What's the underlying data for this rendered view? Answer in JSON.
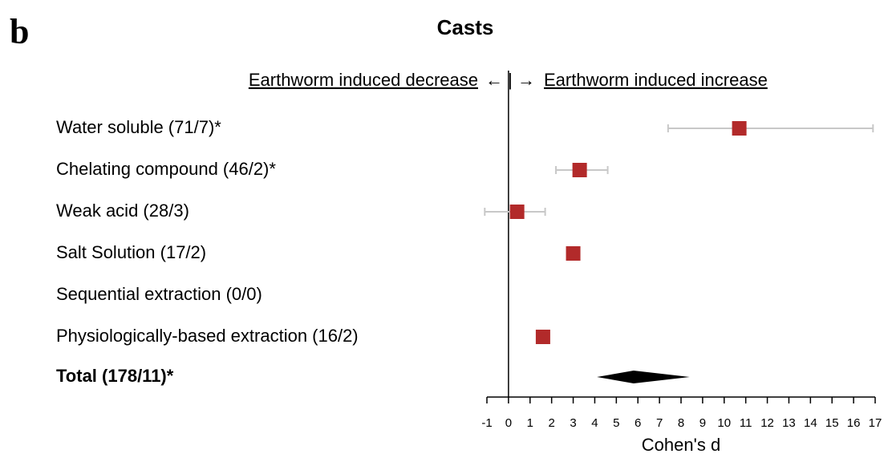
{
  "chart_data": {
    "type": "forest",
    "panel_label": "b",
    "title": "Casts",
    "left_annotation": "Earthworm induced decrease",
    "center_annotation": "← | →",
    "right_annotation": "Earthworm induced increase",
    "categories": [
      "Water soluble (71/7)*",
      "Chelating compound (46/2)*",
      "Weak acid (28/3)",
      "Salt Solution (17/2)",
      "Sequential extraction (0/0)",
      "Physiologically-based extraction (16/2)"
    ],
    "values": [
      10.7,
      3.3,
      0.4,
      3.0,
      null,
      1.6
    ],
    "lower": [
      7.4,
      2.2,
      -1.1,
      null,
      null,
      null
    ],
    "upper": [
      16.9,
      4.6,
      1.7,
      null,
      null,
      null
    ],
    "color": "#b22a2a",
    "ci_color": "#c8c8c8",
    "summary": {
      "label": "Total (178/11)*",
      "value": 5.8,
      "lower": 4.1,
      "upper": 8.4,
      "color": "#000000"
    },
    "xlabel": "Cohen's d",
    "xlim": [
      -1,
      17
    ],
    "xticks": [
      -1,
      0,
      1,
      2,
      3,
      4,
      5,
      6,
      7,
      8,
      9,
      10,
      11,
      12,
      13,
      14,
      15,
      16,
      17
    ]
  }
}
